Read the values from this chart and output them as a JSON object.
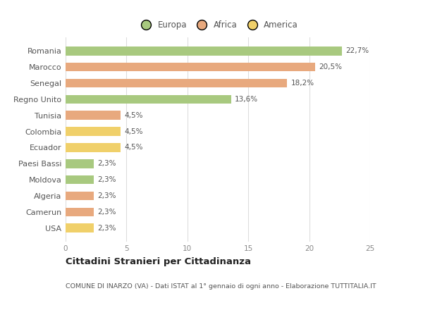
{
  "categories": [
    "Romania",
    "Marocco",
    "Senegal",
    "Regno Unito",
    "Tunisia",
    "Colombia",
    "Ecuador",
    "Paesi Bassi",
    "Moldova",
    "Algeria",
    "Camerun",
    "USA"
  ],
  "values": [
    22.7,
    20.5,
    18.2,
    13.6,
    4.5,
    4.5,
    4.5,
    2.3,
    2.3,
    2.3,
    2.3,
    2.3
  ],
  "labels": [
    "22,7%",
    "20,5%",
    "18,2%",
    "13,6%",
    "4,5%",
    "4,5%",
    "4,5%",
    "2,3%",
    "2,3%",
    "2,3%",
    "2,3%",
    "2,3%"
  ],
  "continents": [
    "Europa",
    "Africa",
    "Africa",
    "Europa",
    "Africa",
    "America",
    "America",
    "Europa",
    "Europa",
    "Africa",
    "Africa",
    "America"
  ],
  "colors": {
    "Europa": "#a8c97f",
    "Africa": "#e8a97e",
    "America": "#f0d06a"
  },
  "legend_order": [
    "Europa",
    "Africa",
    "America"
  ],
  "title": "Cittadini Stranieri per Cittadinanza",
  "subtitle": "COMUNE DI INARZO (VA) - Dati ISTAT al 1° gennaio di ogni anno - Elaborazione TUTTITALIA.IT",
  "xlim": [
    0,
    25
  ],
  "xticks": [
    0,
    5,
    10,
    15,
    20,
    25
  ],
  "background_color": "#ffffff",
  "grid_color": "#dddddd",
  "bar_height": 0.55
}
